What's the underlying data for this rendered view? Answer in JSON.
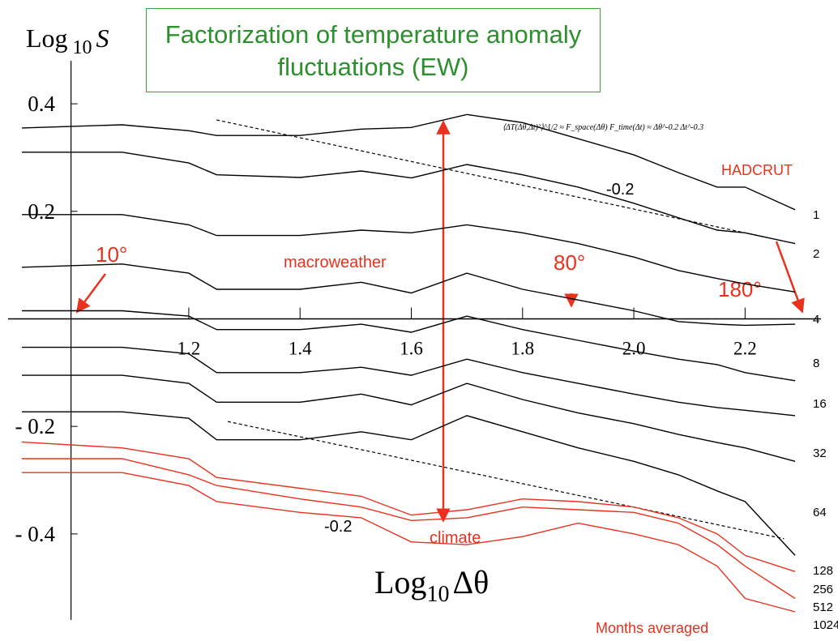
{
  "chart_data": {
    "type": "line",
    "title": "Factorization of temperature anomaly fluctuations (EW)",
    "y_label": {
      "text": "Log",
      "sub": "10",
      "var": "S"
    },
    "x_label": {
      "text": "Log",
      "sub": "10",
      "var": "Δθ"
    },
    "formula": "⟨ΔT(Δθ,Δt)²⟩^1/2 ≈ F_space(Δθ) F_time(Δt) ≈ Δθ^-0.2 Δt^-0.3",
    "annotations": {
      "hadcrut": "HADCRUT",
      "macroweather": "macroweather",
      "climate": "climate",
      "months": "Months averaged",
      "deg10": "10°",
      "deg80": "80°",
      "deg180": "180°"
    },
    "xlim": [
      0.9,
      2.3
    ],
    "ylim": [
      -0.56,
      0.48
    ],
    "xticks": [
      1.2,
      1.4,
      1.6,
      1.8,
      {
        "value": 2,
        "label": "2.0"
      },
      2.2
    ],
    "yticks": [
      0.4,
      0.2,
      {
        "value": -0.2,
        "label": "- 0.2"
      },
      {
        "value": -0.4,
        "label": "- 0.4"
      }
    ],
    "x": [
      0.9,
      1.08,
      1.2,
      1.25,
      1.4,
      1.51,
      1.6,
      1.7,
      1.8,
      1.9,
      2.0,
      2.08,
      2.15,
      2.2,
      2.29
    ],
    "series": [
      {
        "name": "1",
        "color": "#000000",
        "values": [
          0.355,
          0.361,
          0.35,
          0.341,
          0.341,
          0.353,
          0.356,
          0.38,
          0.365,
          0.335,
          0.305,
          0.272,
          0.245,
          0.245,
          0.203
        ]
      },
      {
        "name": "2",
        "color": "#000000",
        "values": [
          0.31,
          0.31,
          0.29,
          0.268,
          0.263,
          0.275,
          0.262,
          0.287,
          0.268,
          0.245,
          0.215,
          0.188,
          0.165,
          0.16,
          0.14
        ]
      },
      {
        "name": "4",
        "color": "#000000",
        "values": [
          0.194,
          0.194,
          0.175,
          0.155,
          0.155,
          0.165,
          0.16,
          0.175,
          0.16,
          0.14,
          0.115,
          0.09,
          0.075,
          0.065,
          0.05
        ]
      },
      {
        "name": "8",
        "color": "#000000",
        "values": [
          0.096,
          0.102,
          0.085,
          0.055,
          0.055,
          0.068,
          0.048,
          0.085,
          0.055,
          0.035,
          0.015,
          -0.005,
          -0.01,
          -0.012,
          -0.01
        ]
      },
      {
        "name": "16",
        "color": "#000000",
        "values": [
          0.015,
          0.015,
          0.005,
          -0.02,
          -0.02,
          -0.01,
          -0.025,
          0.005,
          -0.02,
          -0.04,
          -0.06,
          -0.075,
          -0.085,
          -0.1,
          -0.115
        ]
      },
      {
        "name": "32",
        "color": "#000000",
        "values": [
          -0.053,
          -0.053,
          -0.065,
          -0.1,
          -0.1,
          -0.09,
          -0.105,
          -0.075,
          -0.1,
          -0.12,
          -0.14,
          -0.155,
          -0.165,
          -0.17,
          -0.18
        ]
      },
      {
        "name": "64",
        "color": "#000000",
        "values": [
          -0.105,
          -0.105,
          -0.12,
          -0.155,
          -0.155,
          -0.14,
          -0.16,
          -0.12,
          -0.15,
          -0.175,
          -0.195,
          -0.215,
          -0.23,
          -0.24,
          -0.265
        ]
      },
      {
        "name": "128",
        "color": "#000000",
        "values": [
          -0.173,
          -0.173,
          -0.185,
          -0.225,
          -0.225,
          -0.21,
          -0.225,
          -0.18,
          -0.21,
          -0.24,
          -0.265,
          -0.29,
          -0.32,
          -0.34,
          -0.44
        ]
      },
      {
        "name": "256",
        "color": "#e8321e",
        "values": [
          -0.229,
          -0.24,
          -0.26,
          -0.295,
          -0.315,
          -0.33,
          -0.365,
          -0.355,
          -0.335,
          -0.34,
          -0.35,
          -0.37,
          -0.4,
          -0.44,
          -0.47
        ]
      },
      {
        "name": "512",
        "color": "#e8321e",
        "values": [
          -0.26,
          -0.26,
          -0.29,
          -0.31,
          -0.335,
          -0.35,
          -0.375,
          -0.37,
          -0.35,
          -0.355,
          -0.36,
          -0.38,
          -0.42,
          -0.46,
          -0.52
        ]
      },
      {
        "name": "1024",
        "color": "#e8321e",
        "values": [
          -0.286,
          -0.286,
          -0.31,
          -0.34,
          -0.36,
          -0.37,
          -0.415,
          -0.42,
          -0.405,
          -0.38,
          -0.4,
          -0.42,
          -0.46,
          -0.52,
          -0.545
        ]
      }
    ],
    "reference_lines": [
      {
        "label": "-0.2",
        "x": [
          1.25,
          2.245
        ],
        "values": [
          0.37,
          0.15
        ]
      },
      {
        "label": "-0.2",
        "x": [
          1.27,
          2.27
        ],
        "values": [
          -0.191,
          -0.409
        ]
      }
    ]
  }
}
